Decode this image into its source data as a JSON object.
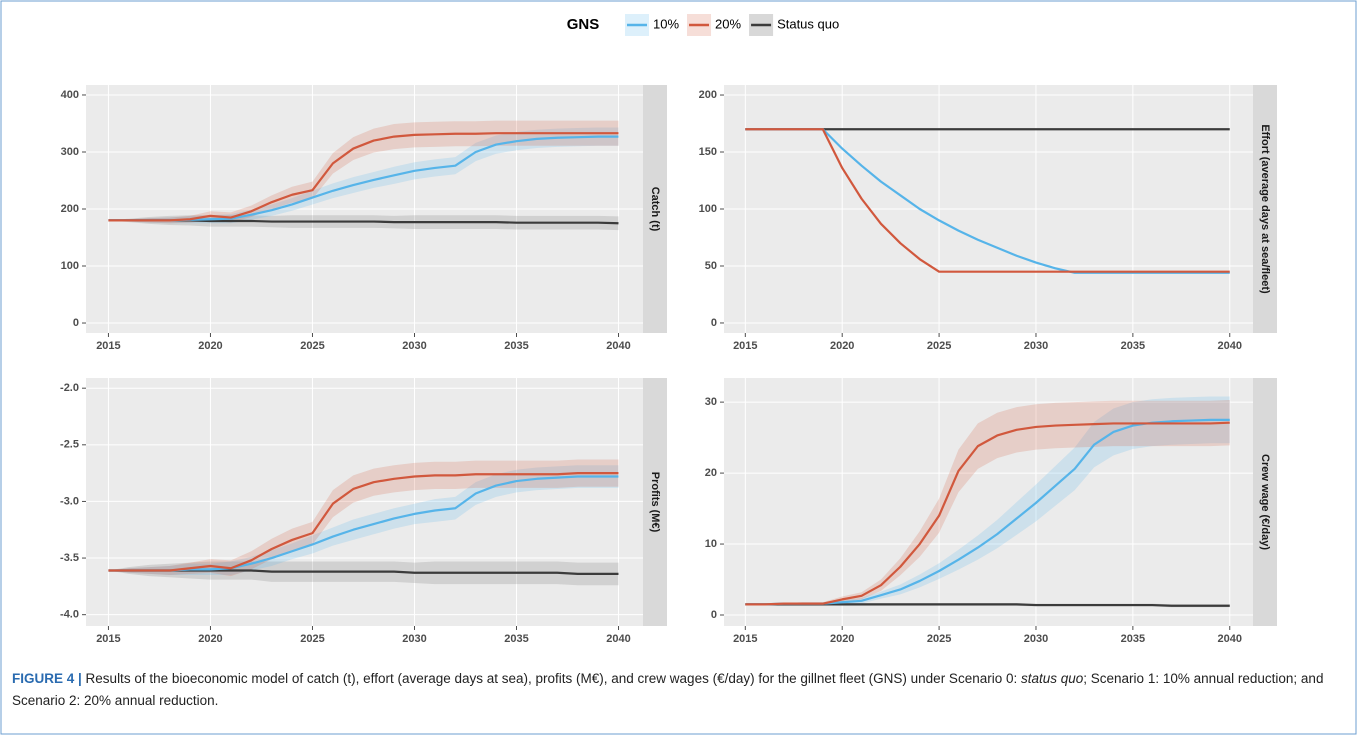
{
  "legend": {
    "title": "GNS",
    "series": [
      {
        "name": "10%",
        "color": "#56b4e9"
      },
      {
        "name": "20%",
        "color": "#d1583d"
      },
      {
        "name": "Status quo",
        "color": "#3b3b3b"
      }
    ]
  },
  "chart_data": [
    {
      "type": "line",
      "strip": "Catch (t)",
      "x": [
        2015,
        2016,
        2017,
        2018,
        2019,
        2020,
        2021,
        2022,
        2023,
        2024,
        2025,
        2026,
        2027,
        2028,
        2029,
        2030,
        2031,
        2032,
        2033,
        2034,
        2035,
        2036,
        2037,
        2038,
        2039,
        2040
      ],
      "xlim": [
        2013.9,
        2041.2
      ],
      "xticks": [
        2015,
        2020,
        2025,
        2030,
        2035,
        2040
      ],
      "ylim": [
        -17.5,
        417.5
      ],
      "yticks": [
        0,
        100,
        200,
        300,
        400
      ],
      "grid": true,
      "series": [
        {
          "values": [
            180,
            180,
            180,
            180,
            181,
            182,
            183,
            190,
            198,
            208,
            220,
            232,
            242,
            251,
            259,
            267,
            272,
            276,
            300,
            313,
            319,
            323,
            325,
            326,
            327,
            327
          ],
          "error": [
            0,
            2,
            4,
            5,
            6,
            7,
            8,
            9,
            10,
            11,
            12,
            13,
            14,
            14,
            15,
            15,
            15,
            15,
            16,
            16,
            16,
            16,
            16,
            16,
            16,
            16
          ]
        },
        {
          "values": [
            180,
            180,
            180,
            180,
            182,
            188,
            185,
            196,
            212,
            225,
            233,
            280,
            306,
            320,
            327,
            330,
            331,
            332,
            332,
            333,
            333,
            333,
            333,
            333,
            333,
            333
          ],
          "error": [
            0,
            2,
            4,
            5,
            6,
            8,
            9,
            10,
            12,
            14,
            15,
            18,
            20,
            21,
            22,
            22,
            22,
            22,
            22,
            22,
            22,
            22,
            22,
            22,
            22,
            22
          ]
        },
        {
          "values": [
            180,
            180,
            180,
            180,
            180,
            179,
            179,
            179,
            178,
            178,
            178,
            178,
            178,
            178,
            177,
            177,
            177,
            177,
            177,
            177,
            176,
            176,
            176,
            176,
            176,
            175
          ],
          "error": [
            0,
            3,
            6,
            8,
            9,
            10,
            10,
            10,
            10,
            11,
            11,
            11,
            11,
            11,
            11,
            12,
            12,
            12,
            12,
            12,
            12,
            12,
            12,
            12,
            12,
            12
          ]
        }
      ]
    },
    {
      "type": "line",
      "strip": "Effort (average days at sea/fleet)",
      "x": [
        2015,
        2016,
        2017,
        2018,
        2019,
        2020,
        2021,
        2022,
        2023,
        2024,
        2025,
        2026,
        2027,
        2028,
        2029,
        2030,
        2031,
        2032,
        2033,
        2034,
        2035,
        2036,
        2037,
        2038,
        2039,
        2040
      ],
      "xlim": [
        2013.9,
        2041.2
      ],
      "xticks": [
        2015,
        2020,
        2025,
        2030,
        2035,
        2040
      ],
      "ylim": [
        -8.8,
        208.8
      ],
      "yticks": [
        0,
        50,
        100,
        150,
        200
      ],
      "grid": true,
      "series": [
        {
          "values": [
            170,
            170,
            170,
            170,
            170,
            153,
            138,
            124,
            112,
            100,
            90,
            81,
            73,
            66,
            59,
            53,
            48,
            44,
            44,
            44,
            44,
            44,
            44,
            44,
            44,
            44
          ]
        },
        {
          "values": [
            170,
            170,
            170,
            170,
            170,
            136,
            109,
            87,
            70,
            56,
            45,
            45,
            45,
            45,
            45,
            45,
            45,
            45,
            45,
            45,
            45,
            45,
            45,
            45,
            45,
            45
          ]
        },
        {
          "values": [
            170,
            170,
            170,
            170,
            170,
            170,
            170,
            170,
            170,
            170,
            170,
            170,
            170,
            170,
            170,
            170,
            170,
            170,
            170,
            170,
            170,
            170,
            170,
            170,
            170,
            170
          ]
        }
      ]
    },
    {
      "type": "line",
      "strip": "Profits (M€)",
      "x": [
        2015,
        2016,
        2017,
        2018,
        2019,
        2020,
        2021,
        2022,
        2023,
        2024,
        2025,
        2026,
        2027,
        2028,
        2029,
        2030,
        2031,
        2032,
        2033,
        2034,
        2035,
        2036,
        2037,
        2038,
        2039,
        2040
      ],
      "xlim": [
        2013.9,
        2041.2
      ],
      "xticks": [
        2015,
        2020,
        2025,
        2030,
        2035,
        2040
      ],
      "ylim": [
        -4.1,
        -1.91
      ],
      "yticks": [
        {
          "value": -4,
          "label": "-4.0"
        },
        -3.5,
        {
          "value": -3,
          "label": "-3.0"
        },
        -2.5,
        {
          "value": -2,
          "label": "-2.0"
        }
      ],
      "grid": true,
      "series": [
        {
          "values": [
            -3.61,
            -3.61,
            -3.61,
            -3.61,
            -3.6,
            -3.6,
            -3.59,
            -3.55,
            -3.5,
            -3.44,
            -3.38,
            -3.31,
            -3.25,
            -3.2,
            -3.15,
            -3.11,
            -3.08,
            -3.06,
            -2.93,
            -2.86,
            -2.82,
            -2.8,
            -2.79,
            -2.78,
            -2.78,
            -2.78
          ],
          "error": [
            0,
            0.02,
            0.03,
            0.04,
            0.05,
            0.05,
            0.06,
            0.06,
            0.07,
            0.07,
            0.08,
            0.08,
            0.09,
            0.09,
            0.09,
            0.09,
            0.1,
            0.1,
            0.1,
            0.1,
            0.1,
            0.1,
            0.1,
            0.1,
            0.1,
            0.1
          ]
        },
        {
          "values": [
            -3.61,
            -3.61,
            -3.61,
            -3.61,
            -3.59,
            -3.57,
            -3.59,
            -3.52,
            -3.42,
            -3.34,
            -3.28,
            -3.02,
            -2.89,
            -2.83,
            -2.8,
            -2.78,
            -2.77,
            -2.77,
            -2.76,
            -2.76,
            -2.76,
            -2.76,
            -2.76,
            -2.75,
            -2.75,
            -2.75
          ],
          "error": [
            0,
            0.02,
            0.03,
            0.04,
            0.05,
            0.06,
            0.07,
            0.08,
            0.09,
            0.1,
            0.1,
            0.12,
            0.12,
            0.12,
            0.12,
            0.12,
            0.12,
            0.12,
            0.12,
            0.12,
            0.12,
            0.12,
            0.12,
            0.12,
            0.12,
            0.12
          ]
        },
        {
          "values": [
            -3.61,
            -3.61,
            -3.61,
            -3.61,
            -3.61,
            -3.61,
            -3.61,
            -3.61,
            -3.62,
            -3.62,
            -3.62,
            -3.62,
            -3.62,
            -3.62,
            -3.62,
            -3.63,
            -3.63,
            -3.63,
            -3.63,
            -3.63,
            -3.63,
            -3.63,
            -3.63,
            -3.64,
            -3.64,
            -3.64
          ],
          "error": [
            0,
            0.03,
            0.05,
            0.06,
            0.07,
            0.08,
            0.08,
            0.08,
            0.09,
            0.09,
            0.09,
            0.09,
            0.09,
            0.09,
            0.09,
            0.09,
            0.1,
            0.1,
            0.1,
            0.1,
            0.1,
            0.1,
            0.1,
            0.1,
            0.1,
            0.1
          ]
        }
      ]
    },
    {
      "type": "line",
      "strip": "Crew wage (€/day)",
      "x": [
        2015,
        2016,
        2017,
        2018,
        2019,
        2020,
        2021,
        2022,
        2023,
        2024,
        2025,
        2026,
        2027,
        2028,
        2029,
        2030,
        2031,
        2032,
        2033,
        2034,
        2035,
        2036,
        2037,
        2038,
        2039,
        2040
      ],
      "xlim": [
        2013.9,
        2041.2
      ],
      "xticks": [
        2015,
        2020,
        2025,
        2030,
        2035,
        2040
      ],
      "ylim": [
        -1.55,
        33.4
      ],
      "yticks": [
        0,
        10,
        20,
        30
      ],
      "grid": true,
      "series": [
        {
          "values": [
            1.5,
            1.5,
            1.6,
            1.6,
            1.6,
            1.8,
            2,
            2.8,
            3.6,
            4.8,
            6.2,
            7.8,
            9.5,
            11.4,
            13.6,
            15.8,
            18.2,
            20.6,
            24,
            25.8,
            26.7,
            27.1,
            27.3,
            27.4,
            27.5,
            27.5
          ],
          "error": [
            0,
            0.1,
            0.1,
            0.2,
            0.2,
            0.3,
            0.4,
            0.5,
            0.7,
            0.9,
            1.1,
            1.4,
            1.7,
            2,
            2.3,
            2.6,
            2.8,
            3,
            3.2,
            3.3,
            3.3,
            3.3,
            3.3,
            3.3,
            3.3,
            3.3
          ]
        },
        {
          "values": [
            1.5,
            1.5,
            1.6,
            1.6,
            1.6,
            2.2,
            2.7,
            4.2,
            6.8,
            10,
            14,
            20.3,
            23.8,
            25.3,
            26.1,
            26.5,
            26.7,
            26.8,
            26.9,
            27,
            27,
            27,
            27,
            27,
            27,
            27.1
          ],
          "error": [
            0,
            0.1,
            0.1,
            0.2,
            0.2,
            0.4,
            0.5,
            0.8,
            1.2,
            1.8,
            2.4,
            3,
            3.2,
            3.2,
            3.2,
            3.2,
            3.2,
            3.2,
            3.2,
            3.2,
            3.2,
            3.2,
            3.2,
            3.2,
            3.2,
            3.2
          ]
        },
        {
          "values": [
            1.5,
            1.5,
            1.5,
            1.5,
            1.5,
            1.5,
            1.5,
            1.5,
            1.5,
            1.5,
            1.5,
            1.5,
            1.5,
            1.5,
            1.5,
            1.4,
            1.4,
            1.4,
            1.4,
            1.4,
            1.4,
            1.4,
            1.3,
            1.3,
            1.3,
            1.3
          ],
          "error": [
            0,
            0.1,
            0.1,
            0.1,
            0.1,
            0.2,
            0.2,
            0.2,
            0.2,
            0.2,
            0.2,
            0.2,
            0.2,
            0.2,
            0.2,
            0.2,
            0.2,
            0.2,
            0.2,
            0.2,
            0.2,
            0.2,
            0.2,
            0.2,
            0.2,
            0.2
          ]
        }
      ]
    }
  ],
  "caption": {
    "label": "FIGURE 4 |",
    "text": " Results of the bioeconomic model of catch (t), effort (average days at sea), profits (M€), and crew wages (€/day) for the gillnet fleet (GNS) under Scenario 0: ",
    "emphasis": "status quo",
    "text_after": "; Scenario 1: 10% annual reduction; and Scenario 2: 20% annual reduction."
  }
}
